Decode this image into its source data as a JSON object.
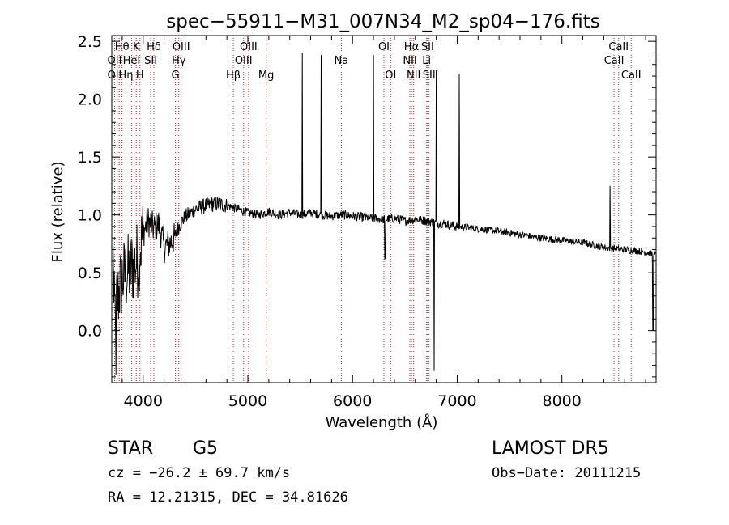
{
  "chart_data": {
    "type": "line",
    "title": "spec−55911−M31_007N34_M2_sp04−176.fits",
    "xlabel": "Wavelength (Å)",
    "ylabel": "Flux (relative)",
    "xlim": [
      3700,
      8900
    ],
    "ylim": [
      -0.45,
      2.55
    ],
    "xticks": [
      4000,
      5000,
      6000,
      7000,
      8000
    ],
    "yticks": [
      0.0,
      0.5,
      1.0,
      1.5,
      2.0,
      2.5
    ],
    "ytick_labels": [
      "0.0",
      "0.5",
      "1.0",
      "1.5",
      "2.0",
      "2.5"
    ],
    "spectrum_anchors": [
      [
        3720,
        0.15
      ],
      [
        3760,
        0.3
      ],
      [
        3800,
        0.45
      ],
      [
        3850,
        0.5
      ],
      [
        3900,
        0.55
      ],
      [
        3950,
        0.62
      ],
      [
        4000,
        0.85
      ],
      [
        4050,
        0.95
      ],
      [
        4100,
        0.88
      ],
      [
        4150,
        0.92
      ],
      [
        4200,
        0.72
      ],
      [
        4250,
        0.75
      ],
      [
        4300,
        0.8
      ],
      [
        4350,
        0.92
      ],
      [
        4400,
        0.98
      ],
      [
        4500,
        1.05
      ],
      [
        4600,
        1.08
      ],
      [
        4700,
        1.1
      ],
      [
        4800,
        1.08
      ],
      [
        4900,
        1.05
      ],
      [
        5000,
        1.02
      ],
      [
        5100,
        1.0
      ],
      [
        5200,
        1.03
      ],
      [
        5300,
        1.0
      ],
      [
        5400,
        1.02
      ],
      [
        5500,
        1.0
      ],
      [
        5600,
        1.02
      ],
      [
        5700,
        1.0
      ],
      [
        5800,
        0.99
      ],
      [
        5900,
        1.0
      ],
      [
        6000,
        0.99
      ],
      [
        6100,
        0.98
      ],
      [
        6200,
        0.97
      ],
      [
        6300,
        0.96
      ],
      [
        6400,
        0.97
      ],
      [
        6500,
        0.95
      ],
      [
        6600,
        0.96
      ],
      [
        6700,
        0.95
      ],
      [
        6800,
        0.93
      ],
      [
        6900,
        0.92
      ],
      [
        7000,
        0.9
      ],
      [
        7200,
        0.88
      ],
      [
        7400,
        0.86
      ],
      [
        7600,
        0.83
      ],
      [
        7800,
        0.8
      ],
      [
        8000,
        0.78
      ],
      [
        8200,
        0.76
      ],
      [
        8400,
        0.72
      ],
      [
        8600,
        0.7
      ],
      [
        8800,
        0.68
      ],
      [
        8900,
        0.65
      ]
    ],
    "emission_peaks": [
      {
        "x": 5520,
        "y": 2.4
      },
      {
        "x": 5700,
        "y": 2.38
      },
      {
        "x": 6200,
        "y": 2.38
      },
      {
        "x": 6800,
        "y": 2.25
      },
      {
        "x": 7020,
        "y": 2.22
      },
      {
        "x": 8460,
        "y": 1.25
      }
    ],
    "absorption_dips": [
      {
        "x": 6310,
        "y": 0.62
      },
      {
        "x": 6780,
        "y": -0.35
      },
      {
        "x": 8870,
        "y": 0.0
      },
      {
        "x": 3740,
        "y": -0.38
      }
    ],
    "reference_lines": [
      3727,
      3750,
      3771,
      3798,
      3835,
      3889,
      3934,
      3969,
      4072,
      4102,
      4308,
      4340,
      4363,
      4861,
      4959,
      5007,
      5175,
      5893,
      6300,
      6364,
      6548,
      6563,
      6584,
      6717,
      6731,
      6708,
      8498,
      8542,
      8662
    ],
    "line_labels": [
      {
        "text": "Hθ",
        "x": 3798,
        "row": 1
      },
      {
        "text": "K",
        "x": 3934,
        "row": 1
      },
      {
        "text": "Hδ",
        "x": 4102,
        "row": 1
      },
      {
        "text": "OII",
        "x": 3727,
        "row": 2
      },
      {
        "text": "HeI",
        "x": 3889,
        "row": 2
      },
      {
        "text": "SII",
        "x": 4072,
        "row": 2
      },
      {
        "text": "OII",
        "x": 3727,
        "row": 3
      },
      {
        "text": "Hη",
        "x": 3835,
        "row": 3
      },
      {
        "text": "H",
        "x": 3969,
        "row": 3
      },
      {
        "text": "OIII",
        "x": 4363,
        "row": 1
      },
      {
        "text": "Hγ",
        "x": 4340,
        "row": 2
      },
      {
        "text": "G",
        "x": 4308,
        "row": 3
      },
      {
        "text": "OIII",
        "x": 5007,
        "row": 1
      },
      {
        "text": "OIII",
        "x": 4959,
        "row": 2
      },
      {
        "text": "Hβ",
        "x": 4861,
        "row": 3
      },
      {
        "text": "Mg",
        "x": 5175,
        "row": 3
      },
      {
        "text": "Na",
        "x": 5893,
        "row": 2
      },
      {
        "text": "OI",
        "x": 6300,
        "row": 1
      },
      {
        "text": "OI",
        "x": 6364,
        "row": 3
      },
      {
        "text": "Hα",
        "x": 6563,
        "row": 1
      },
      {
        "text": "SII",
        "x": 6717,
        "row": 1
      },
      {
        "text": "NII",
        "x": 6548,
        "row": 2
      },
      {
        "text": "Li",
        "x": 6708,
        "row": 2
      },
      {
        "text": "NII",
        "x": 6584,
        "row": 3
      },
      {
        "text": "SII",
        "x": 6731,
        "row": 3
      },
      {
        "text": "CaII",
        "x": 8542,
        "row": 1
      },
      {
        "text": "CaII",
        "x": 8498,
        "row": 2
      },
      {
        "text": "CaII",
        "x": 8662,
        "row": 3
      }
    ]
  },
  "info": {
    "class": "STAR",
    "subclass": "G5",
    "survey": "LAMOST DR5",
    "cz": "cz = −26.2 ± 69.7 km/s",
    "obs_date": "Obs−Date: 20111215",
    "radec": "RA =  12.21315, DEC =  34.81626"
  }
}
